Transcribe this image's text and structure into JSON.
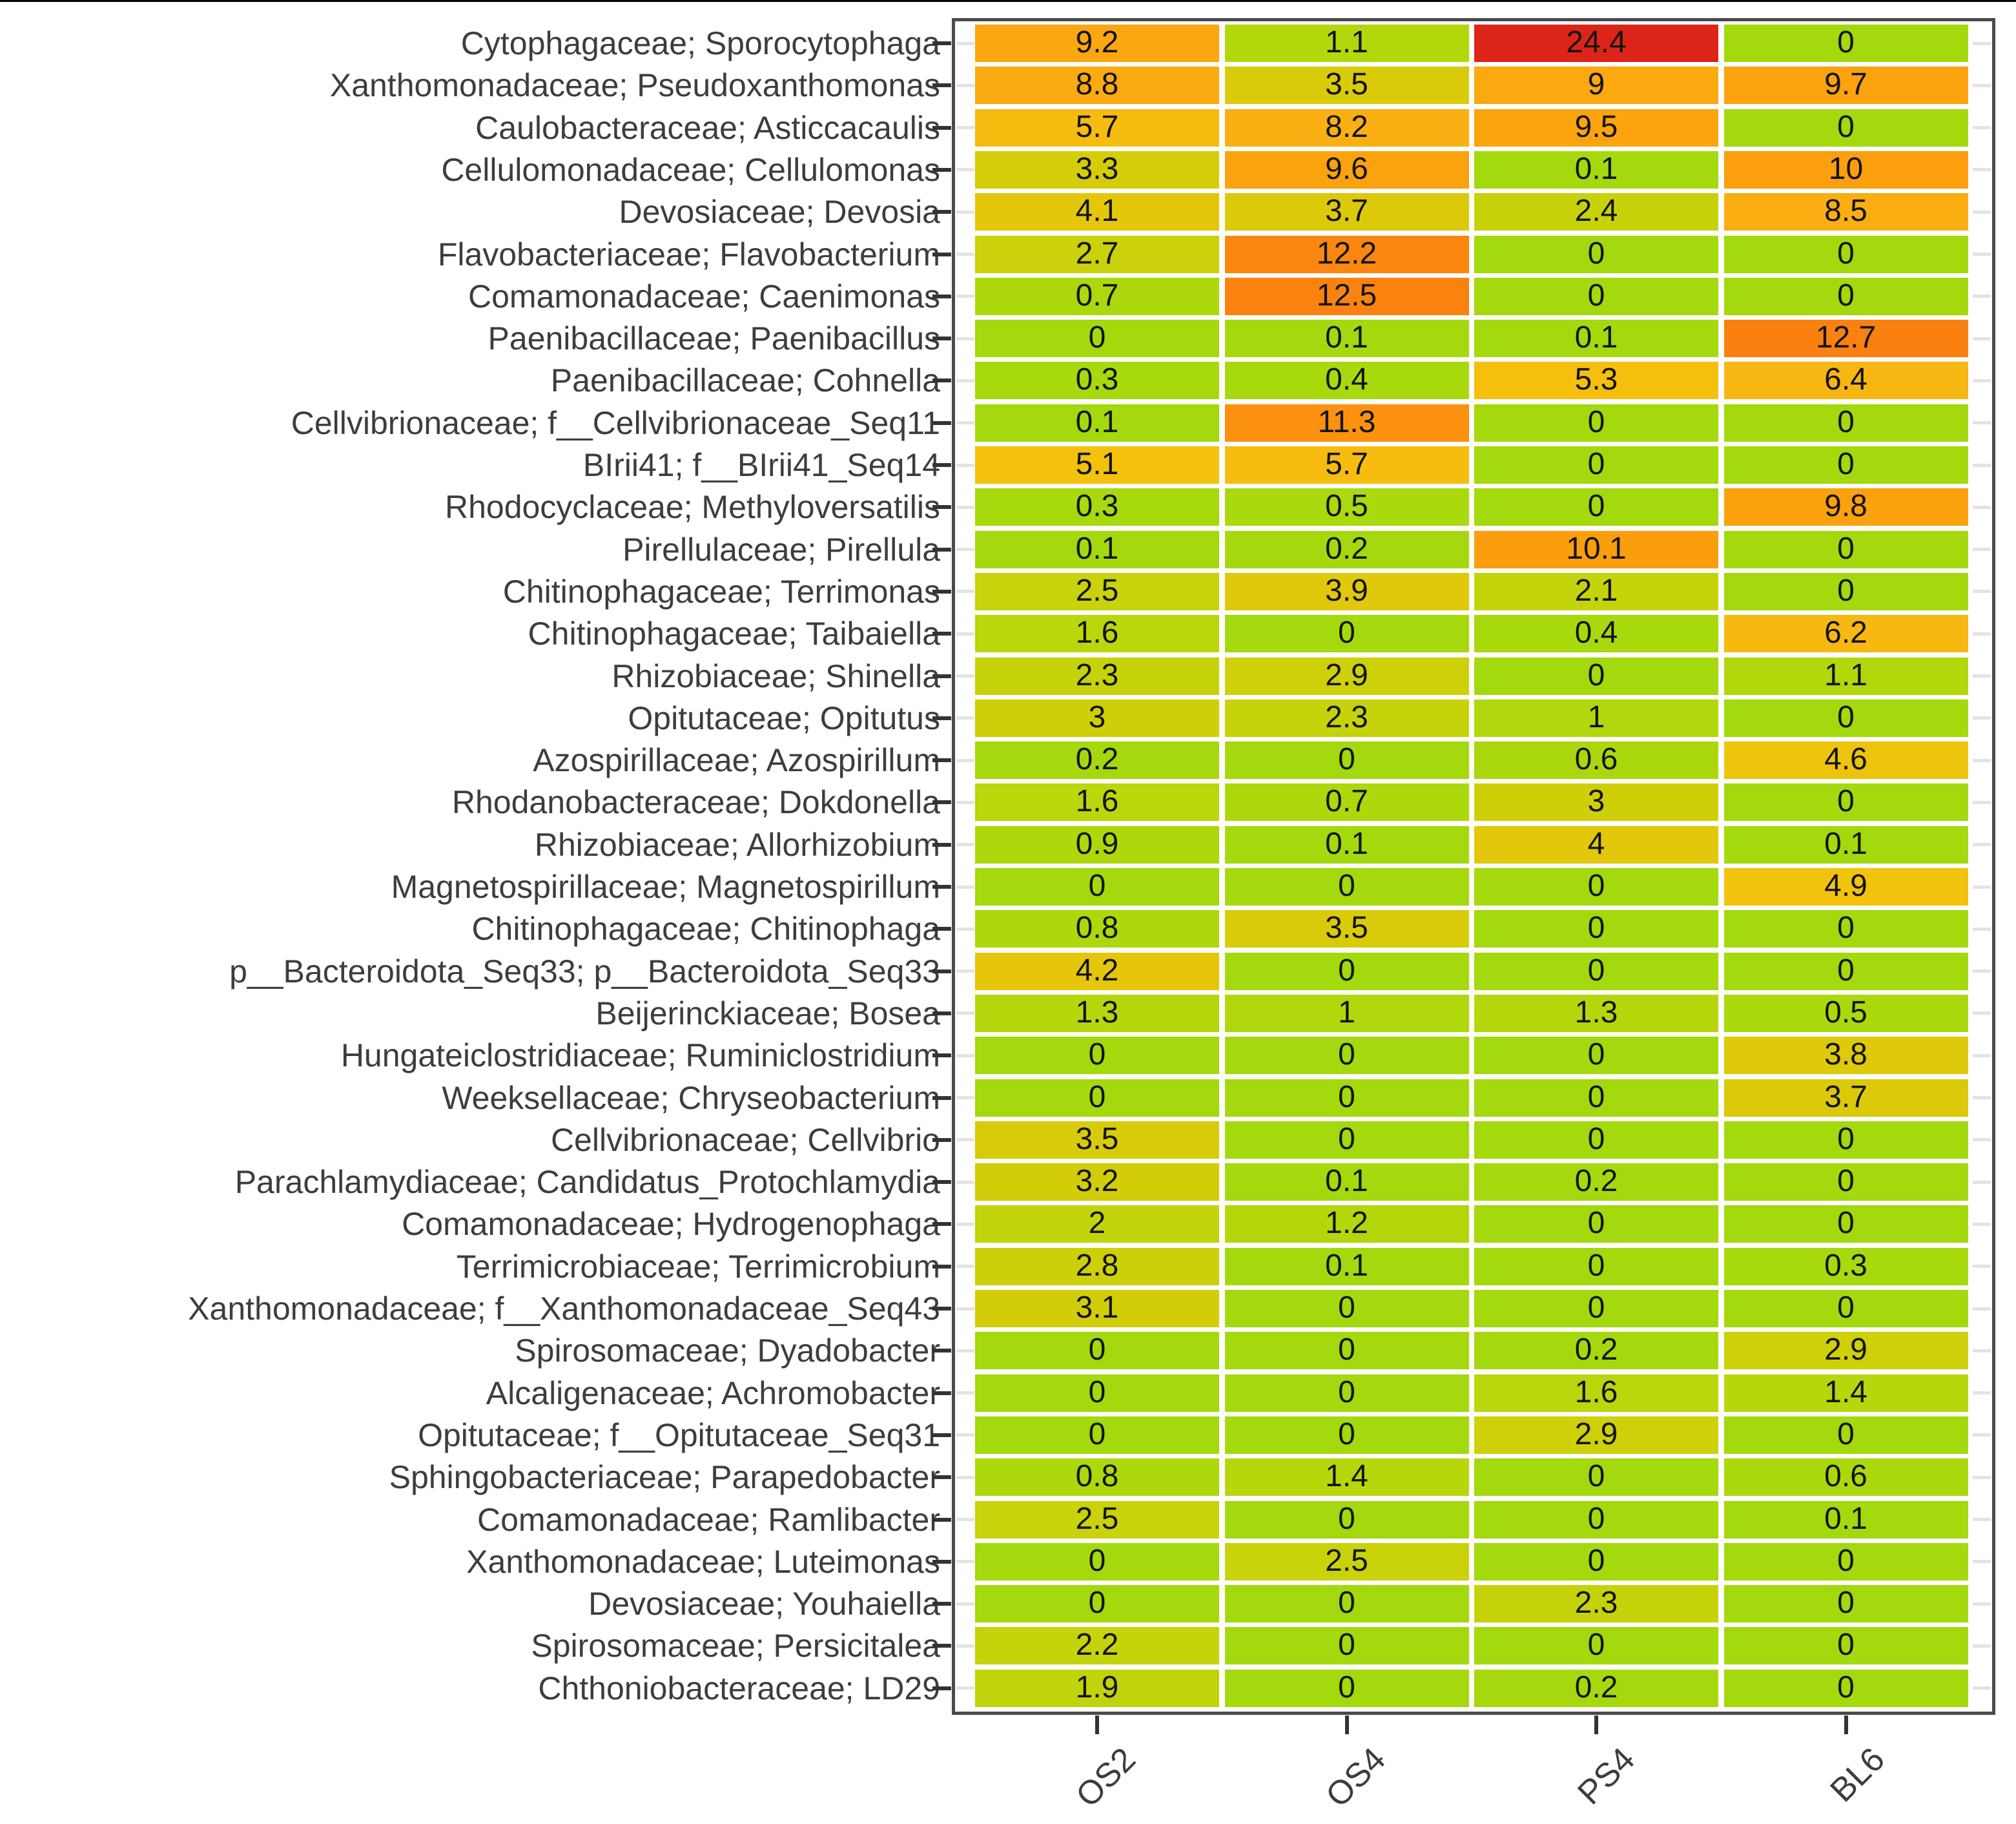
{
  "page": {
    "background": "#ffffff",
    "top_edge_color": "#000000"
  },
  "chart_data": {
    "type": "heatmap",
    "title": "",
    "xlabel": "",
    "ylabel": "",
    "legend": "none",
    "grid": "white gaps between tiles",
    "columns": [
      "OS2",
      "OS4",
      "PS4",
      "BL6"
    ],
    "rows": [
      "Cytophagaceae; Sporocytophaga",
      "Xanthomonadaceae; Pseudoxanthomonas",
      "Caulobacteraceae; Asticcacaulis",
      "Cellulomonadaceae; Cellulomonas",
      "Devosiaceae; Devosia",
      "Flavobacteriaceae; Flavobacterium",
      "Comamonadaceae; Caenimonas",
      "Paenibacillaceae; Paenibacillus",
      "Paenibacillaceae; Cohnella",
      "Cellvibrionaceae; f__Cellvibrionaceae_Seq11",
      "BIrii41; f__BIrii41_Seq14",
      "Rhodocyclaceae; Methyloversatilis",
      "Pirellulaceae; Pirellula",
      "Chitinophagaceae; Terrimonas",
      "Chitinophagaceae; Taibaiella",
      "Rhizobiaceae; Shinella",
      "Opitutaceae; Opitutus",
      "Azospirillaceae; Azospirillum",
      "Rhodanobacteraceae; Dokdonella",
      "Rhizobiaceae; Allorhizobium",
      "Magnetospirillaceae; Magnetospirillum",
      "Chitinophagaceae; Chitinophaga",
      "p__Bacteroidota_Seq33; p__Bacteroidota_Seq33",
      "Beijerinckiaceae; Bosea",
      "Hungateiclostridiaceae; Ruminiclostridium",
      "Weeksellaceae; Chryseobacterium",
      "Cellvibrionaceae; Cellvibrio",
      "Parachlamydiaceae; Candidatus_Protochlamydia",
      "Comamonadaceae; Hydrogenophaga",
      "Terrimicrobiaceae; Terrimicrobium",
      "Xanthomonadaceae; f__Xanthomonadaceae_Seq43",
      "Spirosomaceae; Dyadobacter",
      "Alcaligenaceae; Achromobacter",
      "Opitutaceae; f__Opitutaceae_Seq31",
      "Sphingobacteriaceae; Parapedobacter",
      "Comamonadaceae; Ramlibacter",
      "Xanthomonadaceae; Luteimonas",
      "Devosiaceae; Youhaiella",
      "Spirosomaceae; Persicitalea",
      "Chthoniobacteraceae; LD29"
    ],
    "values": [
      [
        9.2,
        1.1,
        24.4,
        0
      ],
      [
        8.8,
        3.5,
        9,
        9.7
      ],
      [
        5.7,
        8.2,
        9.5,
        0
      ],
      [
        3.3,
        9.6,
        0.1,
        10
      ],
      [
        4.1,
        3.7,
        2.4,
        8.5
      ],
      [
        2.7,
        12.2,
        0,
        0
      ],
      [
        0.7,
        12.5,
        0,
        0
      ],
      [
        0,
        0.1,
        0.1,
        12.7
      ],
      [
        0.3,
        0.4,
        5.3,
        6.4
      ],
      [
        0.1,
        11.3,
        0,
        0
      ],
      [
        5.1,
        5.7,
        0,
        0
      ],
      [
        0.3,
        0.5,
        0,
        9.8
      ],
      [
        0.1,
        0.2,
        10.1,
        0
      ],
      [
        2.5,
        3.9,
        2.1,
        0
      ],
      [
        1.6,
        0,
        0.4,
        6.2
      ],
      [
        2.3,
        2.9,
        0,
        1.1
      ],
      [
        3,
        2.3,
        1,
        0
      ],
      [
        0.2,
        0,
        0.6,
        4.6
      ],
      [
        1.6,
        0.7,
        3,
        0
      ],
      [
        0.9,
        0.1,
        4,
        0.1
      ],
      [
        0,
        0,
        0,
        4.9
      ],
      [
        0.8,
        3.5,
        0,
        0
      ],
      [
        4.2,
        0,
        0,
        0
      ],
      [
        1.3,
        1,
        1.3,
        0.5
      ],
      [
        0,
        0,
        0,
        3.8
      ],
      [
        0,
        0,
        0,
        3.7
      ],
      [
        3.5,
        0,
        0,
        0
      ],
      [
        3.2,
        0.1,
        0.2,
        0
      ],
      [
        2,
        1.2,
        0,
        0
      ],
      [
        2.8,
        0.1,
        0,
        0.3
      ],
      [
        3.1,
        0,
        0,
        0
      ],
      [
        0,
        0,
        0.2,
        2.9
      ],
      [
        0,
        0,
        1.6,
        1.4
      ],
      [
        0,
        0,
        2.9,
        0
      ],
      [
        0.8,
        1.4,
        0,
        0.6
      ],
      [
        2.5,
        0,
        0,
        0.1
      ],
      [
        0,
        2.5,
        0,
        0
      ],
      [
        0,
        0,
        2.3,
        0
      ],
      [
        2.2,
        0,
        0,
        0
      ],
      [
        1.9,
        0,
        0.2,
        0
      ]
    ],
    "value_range": [
      0,
      24.4
    ],
    "color_stops": [
      {
        "v": 0,
        "color": "#A3D90D"
      },
      {
        "v": 1,
        "color": "#B0D80C"
      },
      {
        "v": 2,
        "color": "#C2D40B"
      },
      {
        "v": 3,
        "color": "#CFCF09"
      },
      {
        "v": 4,
        "color": "#E2C70B"
      },
      {
        "v": 5,
        "color": "#F4C20C"
      },
      {
        "v": 6,
        "color": "#F7B912"
      },
      {
        "v": 7,
        "color": "#F8B411"
      },
      {
        "v": 8.5,
        "color": "#FAAE12"
      },
      {
        "v": 9.5,
        "color": "#FBA40E"
      },
      {
        "v": 10.5,
        "color": "#FB9A0D"
      },
      {
        "v": 11.5,
        "color": "#FB8F10"
      },
      {
        "v": 12.7,
        "color": "#FA8110"
      },
      {
        "v": 18,
        "color": "#ED5214"
      },
      {
        "v": 24.4,
        "color": "#DC2418"
      }
    ],
    "cell_text_color": "#141414",
    "axis_text_color": "#3d3d3d",
    "panel_border_color": "#4a4a4a",
    "outer_tick_color": "#333333",
    "inner_tick_color": "#e3e3e3",
    "gap_color": "#ffffff"
  }
}
